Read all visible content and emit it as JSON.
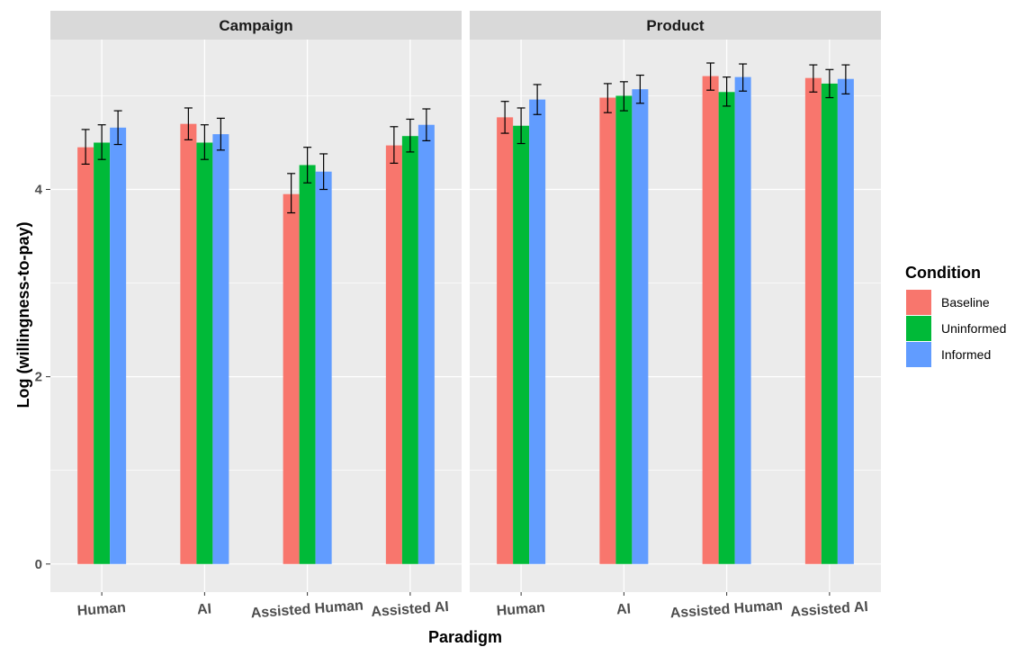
{
  "chart_data": {
    "type": "bar",
    "xlabel": "Paradigm",
    "ylabel": "Log (willingness-to-pay)",
    "ylim": [
      -0.3,
      5.6
    ],
    "yticks": [
      0,
      2,
      4
    ],
    "legend": {
      "title": "Condition",
      "position": "right",
      "entries": [
        "Baseline",
        "Uninformed",
        "Informed"
      ]
    },
    "colors": {
      "Baseline": "#F8766D",
      "Uninformed": "#00BA38",
      "Informed": "#619CFF",
      "panel_bg": "#EBEBEB",
      "strip_bg": "#D9D9D9"
    },
    "grid": true,
    "categories": [
      "Human",
      "AI",
      "Assisted Human",
      "Assisted AI"
    ],
    "panels": [
      {
        "name": "Campaign",
        "series": [
          {
            "name": "Baseline",
            "values": [
              4.45,
              4.7,
              3.95,
              4.47
            ],
            "err_low": [
              4.27,
              4.53,
              3.75,
              4.28
            ],
            "err_high": [
              4.64,
              4.87,
              4.17,
              4.67
            ]
          },
          {
            "name": "Uninformed",
            "values": [
              4.5,
              4.5,
              4.26,
              4.57
            ],
            "err_low": [
              4.32,
              4.32,
              4.07,
              4.4
            ],
            "err_high": [
              4.69,
              4.69,
              4.45,
              4.75
            ]
          },
          {
            "name": "Informed",
            "values": [
              4.66,
              4.59,
              4.19,
              4.69
            ],
            "err_low": [
              4.48,
              4.42,
              4.0,
              4.52
            ],
            "err_high": [
              4.84,
              4.76,
              4.38,
              4.86
            ]
          }
        ]
      },
      {
        "name": "Product",
        "series": [
          {
            "name": "Baseline",
            "values": [
              4.77,
              4.98,
              5.21,
              5.19
            ],
            "err_low": [
              4.6,
              4.82,
              5.06,
              5.04
            ],
            "err_high": [
              4.94,
              5.13,
              5.35,
              5.33
            ]
          },
          {
            "name": "Uninformed",
            "values": [
              4.68,
              5.0,
              5.04,
              5.13
            ],
            "err_low": [
              4.49,
              4.84,
              4.89,
              4.98
            ],
            "err_high": [
              4.87,
              5.15,
              5.2,
              5.28
            ]
          },
          {
            "name": "Informed",
            "values": [
              4.96,
              5.07,
              5.2,
              5.18
            ],
            "err_low": [
              4.8,
              4.92,
              5.05,
              5.02
            ],
            "err_high": [
              5.12,
              5.22,
              5.34,
              5.33
            ]
          }
        ]
      }
    ]
  }
}
